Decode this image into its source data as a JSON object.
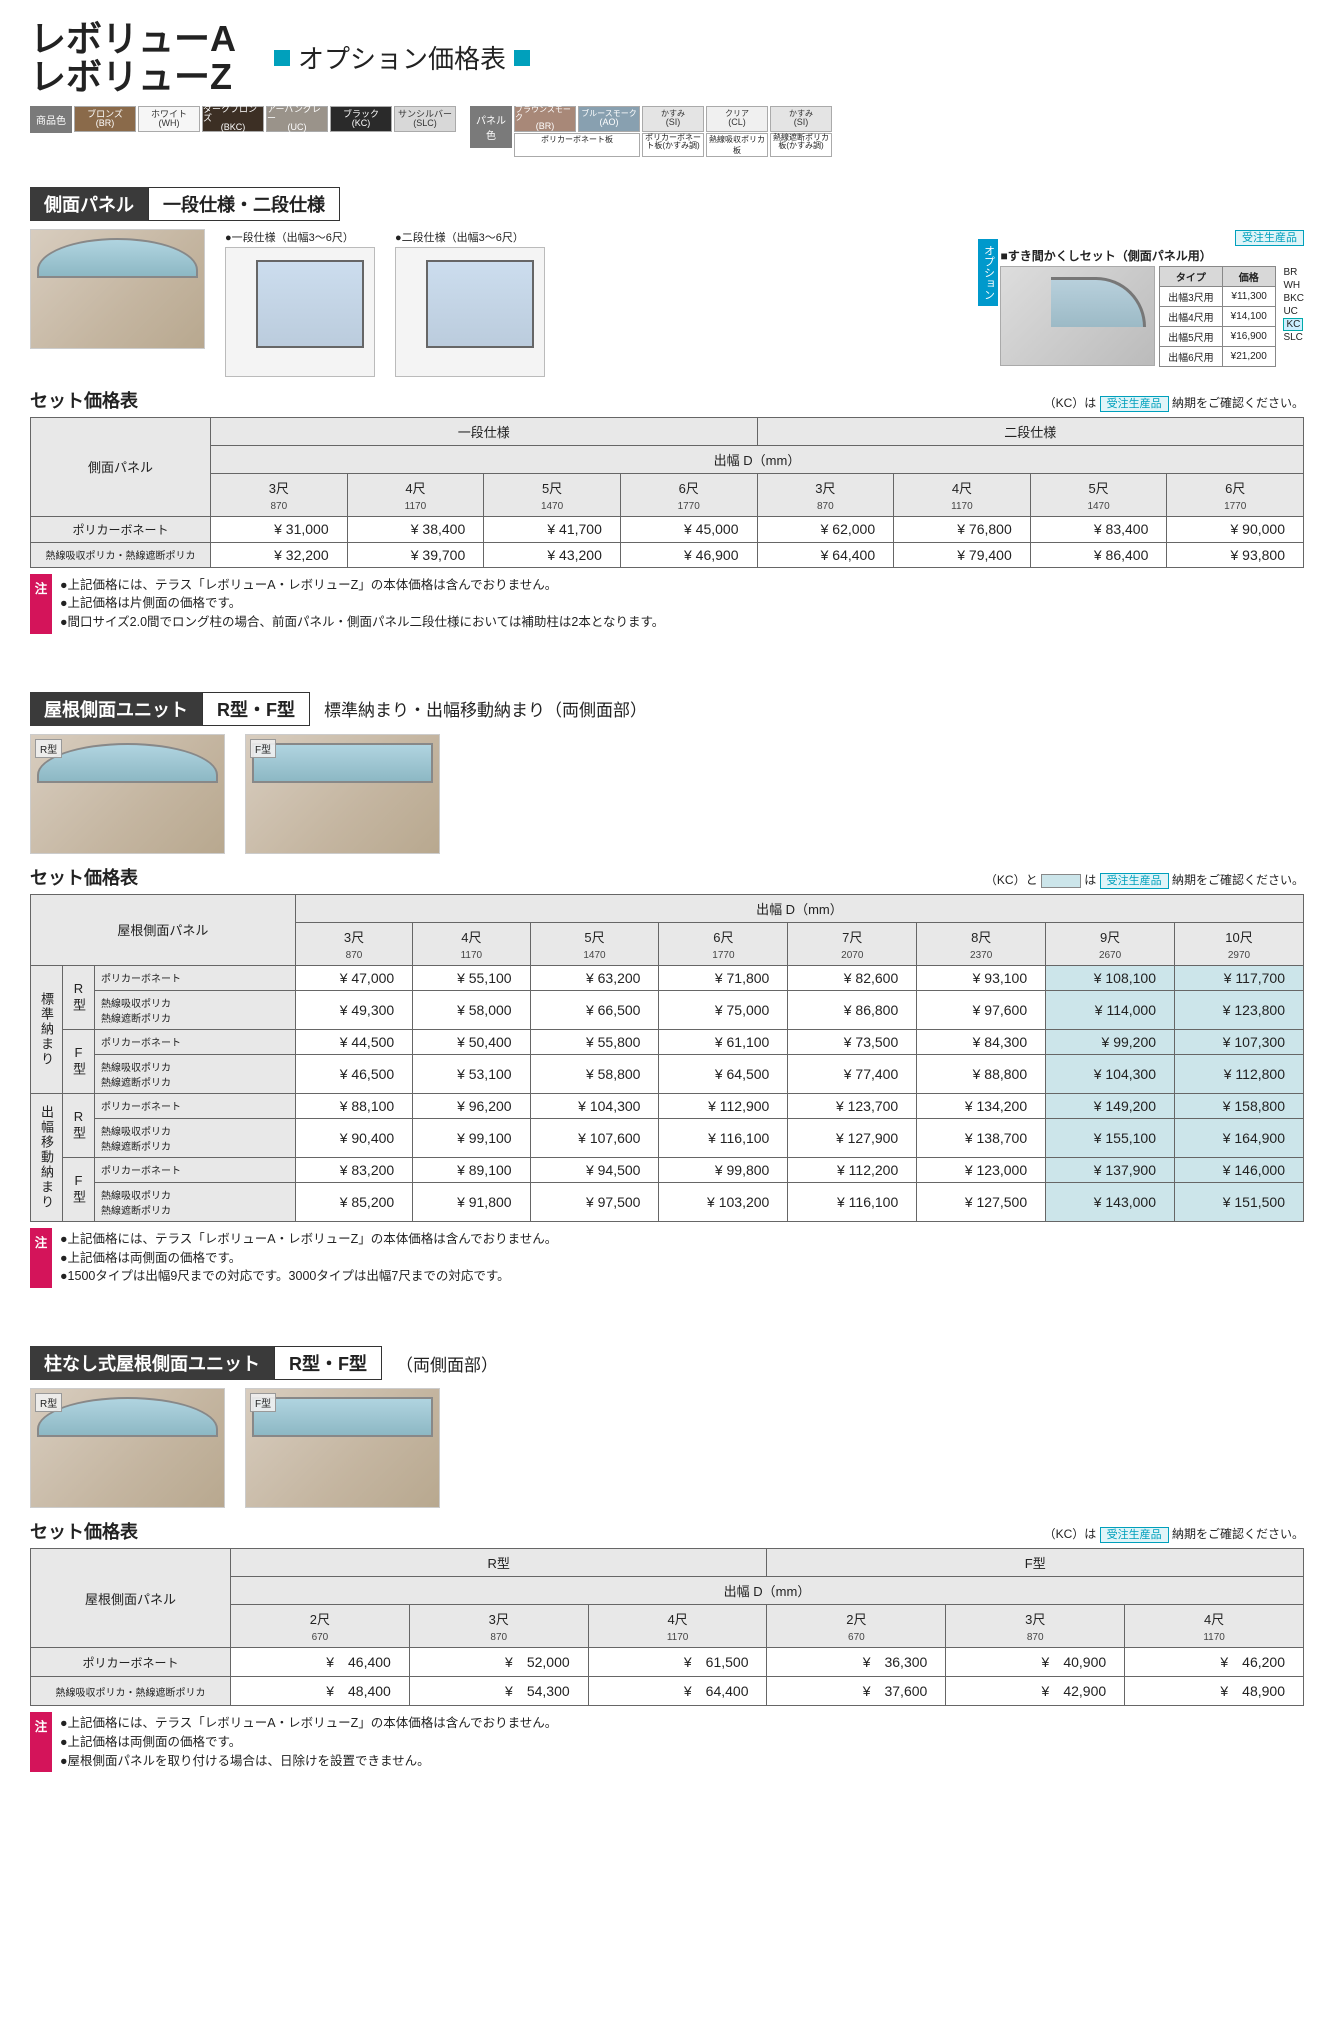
{
  "header": {
    "title1": "レボリューA",
    "title2": "レボリューZ",
    "subtitle": "オプション価格表"
  },
  "swatch": {
    "label1": "商品色",
    "label2": "パネル色",
    "product_colors": [
      {
        "name": "ブロンズ",
        "code": "(BR)",
        "bg": "#8a6a4a",
        "fg": "#fff"
      },
      {
        "name": "ホワイト",
        "code": "(WH)",
        "bg": "#f6f6f6",
        "fg": "#333"
      },
      {
        "name": "ダークブロンズ",
        "code": "(BKC)",
        "bg": "#3c2f24",
        "fg": "#fff"
      },
      {
        "name": "アーバングレー",
        "code": "(UC)",
        "bg": "#9a938a",
        "fg": "#fff"
      },
      {
        "name": "ブラック",
        "code": "(KC)",
        "bg": "#2a2a2a",
        "fg": "#fff"
      },
      {
        "name": "サンシルバー",
        "code": "(SLC)",
        "bg": "#d8d8d8",
        "fg": "#333"
      }
    ],
    "panel_colors": [
      {
        "name": "ブラウンスモーク",
        "code": "(BR)",
        "bg": "#a88878",
        "fg": "#fff"
      },
      {
        "name": "ブルースモーク",
        "code": "(AO)",
        "bg": "#88a0b0",
        "fg": "#fff"
      },
      {
        "name": "かすみ",
        "code": "(SI)",
        "bg": "#e4e4e4",
        "fg": "#333"
      },
      {
        "name": "クリア",
        "code": "(CL)",
        "bg": "#f0f0f0",
        "fg": "#333"
      },
      {
        "name": "かすみ",
        "code": "(SI)",
        "bg": "#e4e4e4",
        "fg": "#333"
      }
    ],
    "panel_sub1": "ポリカーボネート板",
    "panel_sub2": "ポリカーボネート板(かすみ調)",
    "panel_sub3": "熱線吸収ポリカ板",
    "panel_sub4": "熱線遮断ポリカ板(かすみ調)"
  },
  "sec1": {
    "dark": "側面パネル",
    "light": "一段仕様・二段仕様",
    "dia1": "●一段仕様（出幅3～6尺）",
    "dia2": "●二段仕様（出幅3～6尺）",
    "opt_title": "■すき間かくしセット（側面パネル用）",
    "opt_order": "受注生産品",
    "opt_hdr_type": "タイプ",
    "opt_hdr_price": "価格",
    "opt_rows": [
      {
        "t": "出幅3尺用",
        "p": "¥11,300"
      },
      {
        "t": "出幅4尺用",
        "p": "¥14,100"
      },
      {
        "t": "出幅5尺用",
        "p": "¥16,900"
      },
      {
        "t": "出幅6尺用",
        "p": "¥21,200"
      }
    ],
    "opt_side": "BR\nWH\nBKC\nUC\nKC\nSLC",
    "opt_label": "オプション",
    "price_title": "セット価格表",
    "price_note_pre": "（KC）は",
    "price_note_order": "受注生産品",
    "price_note_post": "納期をご確認ください。",
    "tbl": {
      "corner": "側面パネル",
      "spec1": "一段仕様",
      "spec2": "二段仕様",
      "width_hdr": "出幅 D（mm）",
      "cols": [
        {
          "s": "3尺",
          "mm": "870"
        },
        {
          "s": "4尺",
          "mm": "1170"
        },
        {
          "s": "5尺",
          "mm": "1470"
        },
        {
          "s": "6尺",
          "mm": "1770"
        },
        {
          "s": "3尺",
          "mm": "870"
        },
        {
          "s": "4尺",
          "mm": "1170"
        },
        {
          "s": "5尺",
          "mm": "1470"
        },
        {
          "s": "6尺",
          "mm": "1770"
        }
      ],
      "rows": [
        {
          "label": "ポリカーボネート",
          "v": [
            "¥ 31,000",
            "¥ 38,400",
            "¥ 41,700",
            "¥ 45,000",
            "¥ 62,000",
            "¥ 76,800",
            "¥ 83,400",
            "¥ 90,000"
          ]
        },
        {
          "label": "熱線吸収ポリカ・熱線遮断ポリカ",
          "v": [
            "¥ 32,200",
            "¥ 39,700",
            "¥ 43,200",
            "¥ 46,900",
            "¥ 64,400",
            "¥ 79,400",
            "¥ 86,400",
            "¥ 93,800"
          ]
        }
      ]
    },
    "notes": [
      "●上記価格には、テラス「レボリューA・レボリューZ」の本体価格は含んでおりません。",
      "●上記価格は片側面の価格です。",
      "●間口サイズ2.0間でロング柱の場合、前面パネル・側面パネル二段仕様においては補助柱は2本となります。"
    ],
    "note_label": "注"
  },
  "sec2": {
    "dark": "屋根側面ユニット",
    "light": "R型・F型",
    "sub": "標準納まり・出幅移動納まり（両側面部）",
    "img1": "R型",
    "img2": "F型",
    "price_title": "セット価格表",
    "price_note_pre": "（KC）と",
    "price_note_mid": "は",
    "price_note_order": "受注生産品",
    "price_note_post": "納期をご確認ください。",
    "tbl": {
      "corner": "屋根側面パネル",
      "width_hdr": "出幅 D（mm）",
      "cols": [
        {
          "s": "3尺",
          "mm": "870"
        },
        {
          "s": "4尺",
          "mm": "1170"
        },
        {
          "s": "5尺",
          "mm": "1470"
        },
        {
          "s": "6尺",
          "mm": "1770"
        },
        {
          "s": "7尺",
          "mm": "2070"
        },
        {
          "s": "8尺",
          "mm": "2370"
        },
        {
          "s": "9尺",
          "mm": "2670"
        },
        {
          "s": "10尺",
          "mm": "2970"
        }
      ],
      "grp1": "標準納まり",
      "grp2": "出幅移動納まり",
      "typeR": "R型",
      "typeF": "F型",
      "mat1": "ポリカーボネート",
      "mat2": "熱線吸収ポリカ\n熱線遮断ポリカ",
      "rows": [
        {
          "v": [
            "¥ 47,000",
            "¥ 55,100",
            "¥ 63,200",
            "¥ 71,800",
            "¥ 82,600",
            "¥ 93,100",
            "¥ 108,100",
            "¥ 117,700"
          ]
        },
        {
          "v": [
            "¥ 49,300",
            "¥ 58,000",
            "¥ 66,500",
            "¥ 75,000",
            "¥ 86,800",
            "¥ 97,600",
            "¥ 114,000",
            "¥ 123,800"
          ]
        },
        {
          "v": [
            "¥ 44,500",
            "¥ 50,400",
            "¥ 55,800",
            "¥ 61,100",
            "¥ 73,500",
            "¥ 84,300",
            "¥  99,200",
            "¥ 107,300"
          ]
        },
        {
          "v": [
            "¥ 46,500",
            "¥ 53,100",
            "¥ 58,800",
            "¥ 64,500",
            "¥ 77,400",
            "¥ 88,800",
            "¥ 104,300",
            "¥ 112,800"
          ]
        },
        {
          "v": [
            "¥ 88,100",
            "¥ 96,200",
            "¥ 104,300",
            "¥ 112,900",
            "¥ 123,700",
            "¥ 134,200",
            "¥ 149,200",
            "¥ 158,800"
          ]
        },
        {
          "v": [
            "¥ 90,400",
            "¥ 99,100",
            "¥ 107,600",
            "¥ 116,100",
            "¥ 127,900",
            "¥ 138,700",
            "¥ 155,100",
            "¥ 164,900"
          ]
        },
        {
          "v": [
            "¥ 83,200",
            "¥ 89,100",
            "¥  94,500",
            "¥  99,800",
            "¥ 112,200",
            "¥ 123,000",
            "¥ 137,900",
            "¥ 146,000"
          ]
        },
        {
          "v": [
            "¥ 85,200",
            "¥ 91,800",
            "¥  97,500",
            "¥ 103,200",
            "¥ 116,100",
            "¥ 127,500",
            "¥ 143,000",
            "¥ 151,500"
          ]
        }
      ],
      "hl_cols": [
        6,
        7
      ]
    },
    "notes": [
      "●上記価格には、テラス「レボリューA・レボリューZ」の本体価格は含んでおりません。",
      "●上記価格は両側面の価格です。",
      "●1500タイプは出幅9尺までの対応です。3000タイプは出幅7尺までの対応です。"
    ],
    "note_label": "注"
  },
  "sec3": {
    "dark": "柱なし式屋根側面ユニット",
    "light": "R型・F型",
    "sub": "（両側面部）",
    "img1": "R型",
    "img2": "F型",
    "price_title": "セット価格表",
    "price_note_pre": "（KC）は",
    "price_note_order": "受注生産品",
    "price_note_post": "納期をご確認ください。",
    "tbl": {
      "corner": "屋根側面パネル",
      "spec1": "R型",
      "spec2": "F型",
      "width_hdr": "出幅 D（mm）",
      "cols": [
        {
          "s": "2尺",
          "mm": "670"
        },
        {
          "s": "3尺",
          "mm": "870"
        },
        {
          "s": "4尺",
          "mm": "1170"
        },
        {
          "s": "2尺",
          "mm": "670"
        },
        {
          "s": "3尺",
          "mm": "870"
        },
        {
          "s": "4尺",
          "mm": "1170"
        }
      ],
      "rows": [
        {
          "label": "ポリカーボネート",
          "v": [
            "¥　46,400",
            "¥　52,000",
            "¥　61,500",
            "¥　36,300",
            "¥　40,900",
            "¥　46,200"
          ]
        },
        {
          "label": "熱線吸収ポリカ・熱線遮断ポリカ",
          "v": [
            "¥　48,400",
            "¥　54,300",
            "¥　64,400",
            "¥　37,600",
            "¥　42,900",
            "¥　48,900"
          ]
        }
      ]
    },
    "notes": [
      "●上記価格には、テラス「レボリューA・レボリューZ」の本体価格は含んでおりません。",
      "●上記価格は両側面の価格です。",
      "●屋根側面パネルを取り付ける場合は、日除けを設置できません。"
    ],
    "note_label": "注"
  }
}
